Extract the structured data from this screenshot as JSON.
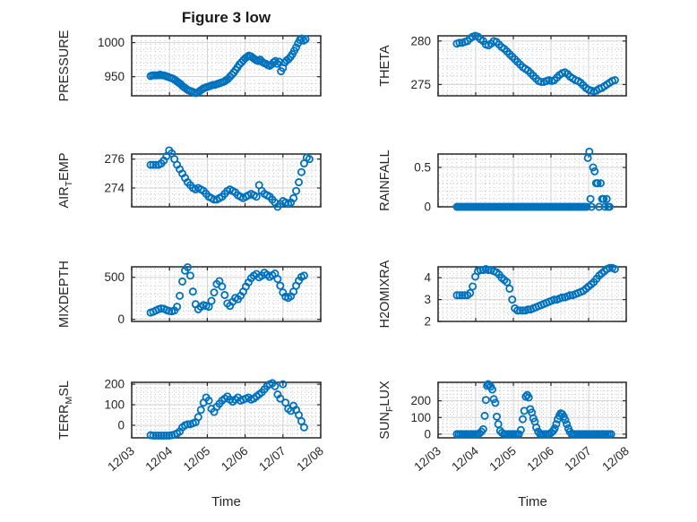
{
  "figure": {
    "title": "Figure 3 low",
    "xlabel": "Time"
  },
  "style": {
    "marker_color": "#0072BD",
    "axis_color": "#262626",
    "major_grid_color": "#d2d2d2",
    "minor_grid_color": "#c9c9c9",
    "text_color": "#262626"
  },
  "x_axis": {
    "label": "Time",
    "ticks": [
      0,
      1,
      2,
      3,
      4,
      5
    ],
    "tick_labels": [
      "12/03",
      "12/04",
      "12/05",
      "12/06",
      "12/07",
      "12/08"
    ],
    "minor_step": 0.125
  },
  "chart_data": [
    {
      "type": "scatter",
      "name": "PRESSURE",
      "col": 0,
      "row": 0,
      "ylabel_parts": [
        {
          "text": "PRESSURE"
        }
      ],
      "ylim": [
        922,
        1010
      ],
      "yticks": [
        950,
        1000
      ],
      "ytick_labels": [
        "950",
        "1000"
      ],
      "minor_y_step": 10,
      "x": [
        0.5,
        0.55,
        0.6,
        0.65,
        0.7,
        0.75,
        0.8,
        0.85,
        0.9,
        0.95,
        1,
        1.05,
        1.1,
        1.15,
        1.2,
        1.25,
        1.3,
        1.35,
        1.4,
        1.45,
        1.5,
        1.55,
        1.6,
        1.65,
        1.7,
        1.75,
        1.8,
        1.85,
        1.9,
        1.95,
        2,
        2.05,
        2.1,
        2.15,
        2.2,
        2.25,
        2.3,
        2.35,
        2.4,
        2.45,
        2.5,
        2.55,
        2.6,
        2.65,
        2.7,
        2.75,
        2.8,
        2.85,
        2.9,
        2.95,
        3,
        3.05,
        3.1,
        3.15,
        3.2,
        3.25,
        3.3,
        3.35,
        3.4,
        3.45,
        3.5,
        3.55,
        3.6,
        3.65,
        3.7,
        3.75,
        3.8,
        3.85,
        3.9,
        3.95,
        4,
        4.05,
        4.1,
        4.15,
        4.2,
        4.25,
        4.3,
        4.35,
        4.4,
        4.45,
        4.5,
        4.55,
        4.6
      ],
      "y": [
        951,
        952,
        952,
        952,
        952,
        953,
        952,
        952,
        951,
        950,
        949,
        948,
        947,
        945,
        943,
        941,
        939,
        936,
        934,
        932,
        930,
        929,
        928,
        927,
        926,
        927,
        929,
        931,
        933,
        934,
        935,
        936,
        937,
        938,
        938,
        939,
        940,
        941,
        942,
        943,
        945,
        947,
        950,
        953,
        956,
        960,
        964,
        968,
        971,
        974,
        977,
        979,
        981,
        980,
        978,
        976,
        974,
        973,
        975,
        972,
        970,
        969,
        967,
        966,
        968,
        971,
        973,
        969,
        972,
        958,
        963,
        971,
        974,
        976,
        979,
        983,
        988,
        993,
        999,
        1004,
        1006,
        1003,
        1005
      ]
    },
    {
      "type": "scatter",
      "name": "THETA",
      "col": 1,
      "row": 0,
      "ylabel_parts": [
        {
          "text": "THETA"
        }
      ],
      "ylim": [
        273.7,
        280.6
      ],
      "yticks": [
        275,
        280
      ],
      "ytick_labels": [
        "275",
        "280"
      ],
      "minor_y_step": 1,
      "x": [
        0.5,
        0.57,
        0.64,
        0.71,
        0.78,
        0.85,
        0.92,
        0.99,
        1.06,
        1.13,
        1.2,
        1.27,
        1.34,
        1.41,
        1.48,
        1.55,
        1.62,
        1.69,
        1.76,
        1.83,
        1.9,
        1.97,
        2.04,
        2.11,
        2.18,
        2.25,
        2.32,
        2.39,
        2.46,
        2.53,
        2.6,
        2.67,
        2.74,
        2.81,
        2.88,
        2.95,
        3.02,
        3.09,
        3.16,
        3.23,
        3.3,
        3.37,
        3.44,
        3.51,
        3.58,
        3.65,
        3.72,
        3.79,
        3.86,
        3.93,
        4,
        4.07,
        4.14,
        4.21,
        4.28,
        4.35,
        4.42,
        4.49,
        4.56,
        4.63,
        4.7
      ],
      "y": [
        279.7,
        279.8,
        279.8,
        279.9,
        280.0,
        280.3,
        280.5,
        280.6,
        280.5,
        280.2,
        280.0,
        279.6,
        279.5,
        279.7,
        280.0,
        279.9,
        279.6,
        279.3,
        279.1,
        278.8,
        278.5,
        278.2,
        277.9,
        277.6,
        277.3,
        277.0,
        276.8,
        276.6,
        276.3,
        276.0,
        275.7,
        275.4,
        275.3,
        275.3,
        275.4,
        275.5,
        275.4,
        275.5,
        275.8,
        276.1,
        276.3,
        276.4,
        276.2,
        275.9,
        275.7,
        275.5,
        275.4,
        275.2,
        274.9,
        274.6,
        274.4,
        274.3,
        274.2,
        274.3,
        274.5,
        274.6,
        274.8,
        275.0,
        275.2,
        275.4,
        275.5
      ]
    },
    {
      "type": "scatter",
      "name": "AIR_TEMP",
      "col": 0,
      "row": 1,
      "ylabel_parts": [
        {
          "text": "AIR"
        },
        {
          "text": "T",
          "sub": true
        },
        {
          "text": "EMP"
        }
      ],
      "ylim": [
        272.7,
        276.35
      ],
      "yticks": [
        274,
        276
      ],
      "ytick_labels": [
        "274",
        "276"
      ],
      "minor_y_step": 0.4,
      "x": [
        0.5,
        0.57,
        0.64,
        0.71,
        0.78,
        0.85,
        0.92,
        0.99,
        1.06,
        1.13,
        1.2,
        1.27,
        1.34,
        1.41,
        1.48,
        1.55,
        1.62,
        1.69,
        1.76,
        1.83,
        1.9,
        1.97,
        2.04,
        2.11,
        2.18,
        2.25,
        2.32,
        2.39,
        2.46,
        2.53,
        2.6,
        2.67,
        2.74,
        2.81,
        2.88,
        2.95,
        3.02,
        3.09,
        3.16,
        3.23,
        3.3,
        3.37,
        3.44,
        3.51,
        3.58,
        3.65,
        3.72,
        3.79,
        3.86,
        3.93,
        4,
        4.07,
        4.14,
        4.21,
        4.28,
        4.35,
        4.42,
        4.49,
        4.56,
        4.63,
        4.7
      ],
      "y": [
        275.6,
        275.6,
        275.6,
        275.6,
        275.7,
        275.9,
        276.2,
        276.6,
        276.4,
        276.0,
        275.6,
        275.3,
        275.0,
        274.7,
        274.4,
        274.2,
        274.0,
        273.9,
        274.0,
        273.9,
        273.8,
        273.6,
        273.4,
        273.3,
        273.2,
        273.2,
        273.3,
        273.4,
        273.6,
        273.8,
        273.9,
        273.8,
        273.7,
        273.5,
        273.4,
        273.3,
        273.4,
        273.5,
        273.6,
        273.5,
        273.4,
        274.2,
        273.8,
        273.6,
        273.5,
        273.4,
        273.2,
        273.0,
        272.7,
        272.9,
        273.1,
        273.0,
        272.9,
        273.0,
        273.3,
        273.8,
        274.4,
        275.1,
        275.7,
        276.1,
        276.0
      ]
    },
    {
      "type": "scatter",
      "name": "RAINFALL",
      "col": 1,
      "row": 1,
      "ylabel_parts": [
        {
          "text": "RAINFALL"
        }
      ],
      "ylim": [
        0,
        0.67
      ],
      "yticks": [
        0,
        0.5
      ],
      "ytick_labels": [
        "0",
        "0.5"
      ],
      "minor_y_step": 0.1,
      "x": [
        0.5,
        0.55,
        0.6,
        0.65,
        0.7,
        0.75,
        0.8,
        0.85,
        0.9,
        0.95,
        1,
        1.05,
        1.1,
        1.15,
        1.2,
        1.25,
        1.3,
        1.35,
        1.4,
        1.45,
        1.5,
        1.55,
        1.6,
        1.65,
        1.7,
        1.75,
        1.8,
        1.85,
        1.9,
        1.95,
        2,
        2.05,
        2.1,
        2.15,
        2.2,
        2.25,
        2.3,
        2.35,
        2.4,
        2.45,
        2.5,
        2.55,
        2.6,
        2.65,
        2.7,
        2.75,
        2.8,
        2.85,
        2.9,
        2.95,
        3,
        3.05,
        3.1,
        3.15,
        3.2,
        3.25,
        3.3,
        3.35,
        3.4,
        3.45,
        3.5,
        3.55,
        3.6,
        3.65,
        3.7,
        3.75,
        3.8,
        3.85,
        3.9,
        3.95,
        3.98,
        4.02,
        4.05,
        4.08,
        4.12,
        4.16,
        4.2,
        4.24,
        4.28,
        4.32,
        4.36,
        4.4,
        4.44,
        4.48,
        4.52,
        4.56
      ],
      "y": [
        0,
        0,
        0,
        0,
        0,
        0,
        0,
        0,
        0,
        0,
        0,
        0,
        0,
        0,
        0,
        0,
        0,
        0,
        0,
        0,
        0,
        0,
        0,
        0,
        0,
        0,
        0,
        0,
        0,
        0,
        0,
        0,
        0,
        0,
        0,
        0,
        0,
        0,
        0,
        0,
        0,
        0,
        0,
        0,
        0,
        0,
        0,
        0,
        0,
        0,
        0,
        0,
        0,
        0,
        0,
        0,
        0,
        0,
        0,
        0,
        0,
        0,
        0,
        0,
        0,
        0,
        0,
        0,
        0,
        0,
        0.62,
        0.7,
        0.1,
        0,
        0.5,
        0.45,
        0.3,
        0.3,
        0,
        0.3,
        0.1,
        0.1,
        0,
        0.1,
        0,
        0
      ]
    },
    {
      "type": "scatter",
      "name": "MIXDEPTH",
      "col": 0,
      "row": 2,
      "ylabel_parts": [
        {
          "text": "MIXDEPTH"
        }
      ],
      "ylim": [
        -25,
        625
      ],
      "yticks": [
        0,
        500
      ],
      "ytick_labels": [
        "0",
        "500"
      ],
      "minor_y_step": 100,
      "x": [
        0.5,
        0.57,
        0.64,
        0.71,
        0.78,
        0.85,
        0.92,
        0.99,
        1.06,
        1.13,
        1.2,
        1.27,
        1.34,
        1.41,
        1.48,
        1.55,
        1.62,
        1.69,
        1.76,
        1.83,
        1.9,
        1.97,
        2.04,
        2.11,
        2.18,
        2.25,
        2.32,
        2.39,
        2.46,
        2.53,
        2.6,
        2.67,
        2.74,
        2.81,
        2.88,
        2.95,
        3.02,
        3.09,
        3.16,
        3.23,
        3.3,
        3.37,
        3.44,
        3.51,
        3.58,
        3.65,
        3.72,
        3.79,
        3.86,
        3.93,
        4,
        4.07,
        4.14,
        4.21,
        4.28,
        4.35,
        4.42,
        4.49,
        4.56
      ],
      "y": [
        80,
        90,
        105,
        120,
        130,
        125,
        110,
        100,
        95,
        105,
        150,
        280,
        450,
        580,
        620,
        520,
        330,
        180,
        120,
        150,
        170,
        160,
        150,
        220,
        320,
        420,
        455,
        390,
        290,
        190,
        160,
        210,
        255,
        240,
        280,
        330,
        390,
        440,
        490,
        520,
        540,
        500,
        520,
        555,
        530,
        505,
        525,
        545,
        480,
        400,
        320,
        270,
        255,
        275,
        330,
        400,
        460,
        505,
        520
      ]
    },
    {
      "type": "scatter",
      "name": "H2OMIXRA",
      "col": 1,
      "row": 2,
      "ylabel_parts": [
        {
          "text": "H2OMIXRA"
        }
      ],
      "ylim": [
        2,
        4.5
      ],
      "yticks": [
        2,
        3,
        4
      ],
      "ytick_labels": [
        "2",
        "3",
        "4"
      ],
      "minor_y_step": 0.2,
      "x": [
        0.5,
        0.57,
        0.64,
        0.71,
        0.78,
        0.85,
        0.92,
        0.99,
        1.06,
        1.13,
        1.2,
        1.27,
        1.34,
        1.41,
        1.48,
        1.55,
        1.62,
        1.69,
        1.76,
        1.83,
        1.9,
        1.97,
        2.04,
        2.11,
        2.18,
        2.25,
        2.32,
        2.39,
        2.46,
        2.53,
        2.6,
        2.67,
        2.74,
        2.81,
        2.88,
        2.95,
        3.02,
        3.09,
        3.16,
        3.23,
        3.3,
        3.37,
        3.44,
        3.51,
        3.58,
        3.65,
        3.72,
        3.79,
        3.86,
        3.93,
        4,
        4.07,
        4.14,
        4.21,
        4.28,
        4.35,
        4.42,
        4.49,
        4.56,
        4.63,
        4.7
      ],
      "y": [
        3.2,
        3.2,
        3.2,
        3.2,
        3.2,
        3.3,
        3.6,
        4.05,
        4.3,
        4.35,
        4.35,
        4.4,
        4.35,
        4.35,
        4.3,
        4.25,
        4.15,
        4.0,
        3.9,
        3.8,
        3.5,
        3.0,
        2.6,
        2.5,
        2.5,
        2.5,
        2.5,
        2.55,
        2.55,
        2.6,
        2.65,
        2.7,
        2.75,
        2.8,
        2.85,
        2.9,
        2.95,
        3.0,
        3.0,
        3.05,
        3.1,
        3.1,
        3.15,
        3.2,
        3.2,
        3.25,
        3.3,
        3.35,
        3.4,
        3.5,
        3.6,
        3.7,
        3.8,
        3.95,
        4.1,
        4.2,
        4.3,
        4.4,
        4.45,
        4.45,
        4.4
      ]
    },
    {
      "type": "scatter",
      "name": "TERR_MSL",
      "col": 0,
      "row": 3,
      "ylabel_parts": [
        {
          "text": "TERR"
        },
        {
          "text": "M",
          "sub": true
        },
        {
          "text": "SL"
        }
      ],
      "ylim": [
        -61,
        209
      ],
      "yticks": [
        0,
        100,
        200
      ],
      "ytick_labels": [
        "0",
        "100",
        "200"
      ],
      "minor_y_step": 20,
      "x": [
        0.5,
        0.57,
        0.64,
        0.71,
        0.78,
        0.85,
        0.92,
        0.99,
        1.06,
        1.13,
        1.2,
        1.27,
        1.34,
        1.41,
        1.48,
        1.55,
        1.62,
        1.69,
        1.76,
        1.83,
        1.9,
        1.97,
        2.04,
        2.11,
        2.18,
        2.25,
        2.32,
        2.39,
        2.46,
        2.53,
        2.6,
        2.67,
        2.74,
        2.81,
        2.88,
        2.95,
        3.02,
        3.09,
        3.16,
        3.23,
        3.3,
        3.37,
        3.44,
        3.51,
        3.58,
        3.65,
        3.72,
        3.79,
        3.86,
        3.93,
        4,
        4.07,
        4.14,
        4.21,
        4.28,
        4.35,
        4.42,
        4.49,
        4.56
      ],
      "y": [
        -48,
        -50,
        -50,
        -50,
        -50,
        -50,
        -50,
        -50,
        -48,
        -45,
        -40,
        -30,
        -10,
        0,
        5,
        5,
        10,
        15,
        40,
        75,
        110,
        135,
        120,
        80,
        65,
        90,
        105,
        120,
        130,
        140,
        125,
        115,
        125,
        135,
        120,
        125,
        130,
        135,
        125,
        130,
        140,
        150,
        160,
        175,
        190,
        200,
        205,
        190,
        150,
        130,
        200,
        110,
        80,
        70,
        95,
        75,
        50,
        20,
        -10
      ]
    },
    {
      "type": "scatter",
      "name": "SUN_FLUX",
      "col": 1,
      "row": 3,
      "ylabel_parts": [
        {
          "text": "SUN"
        },
        {
          "text": "F",
          "sub": true
        },
        {
          "text": "LUX"
        }
      ],
      "ylim": [
        -22,
        311
      ],
      "yticks": [
        0,
        100,
        200
      ],
      "ytick_labels": [
        "0",
        "100",
        "200"
      ],
      "minor_y_step": 20,
      "x": [
        0.5,
        0.55,
        0.6,
        0.65,
        0.7,
        0.75,
        0.8,
        0.85,
        0.9,
        0.95,
        1,
        1.05,
        1.1,
        1.15,
        1.2,
        1.24,
        1.27,
        1.3,
        1.33,
        1.36,
        1.4,
        1.44,
        1.48,
        1.52,
        1.56,
        1.6,
        1.65,
        1.7,
        1.75,
        1.8,
        1.85,
        1.9,
        1.95,
        2,
        2.05,
        2.1,
        2.15,
        2.2,
        2.25,
        2.29,
        2.33,
        2.37,
        2.41,
        2.45,
        2.49,
        2.53,
        2.57,
        2.61,
        2.66,
        2.71,
        2.76,
        2.81,
        2.86,
        2.91,
        2.96,
        3.01,
        3.06,
        3.1,
        3.14,
        3.18,
        3.22,
        3.26,
        3.3,
        3.34,
        3.38,
        3.42,
        3.46,
        3.5,
        3.55,
        3.6,
        3.65,
        3.7,
        3.75,
        3.8,
        3.85,
        3.9,
        3.95,
        4,
        4.05,
        4.1,
        4.15,
        4.2,
        4.25,
        4.3,
        4.35,
        4.4,
        4.45,
        4.5,
        4.55,
        4.6
      ],
      "y": [
        0,
        0,
        0,
        0,
        0,
        0,
        0,
        0,
        0,
        0,
        0,
        0,
        5,
        15,
        30,
        110,
        205,
        290,
        300,
        295,
        285,
        268,
        210,
        188,
        105,
        60,
        20,
        8,
        0,
        0,
        0,
        0,
        0,
        0,
        0,
        0,
        0,
        25,
        90,
        140,
        225,
        235,
        220,
        150,
        130,
        95,
        75,
        40,
        15,
        0,
        0,
        0,
        0,
        0,
        0,
        10,
        20,
        35,
        60,
        90,
        110,
        125,
        120,
        105,
        85,
        60,
        35,
        15,
        0,
        0,
        0,
        0,
        0,
        0,
        0,
        0,
        0,
        0,
        0,
        0,
        0,
        0,
        0,
        0,
        0,
        0,
        0,
        0,
        0,
        0
      ]
    }
  ]
}
